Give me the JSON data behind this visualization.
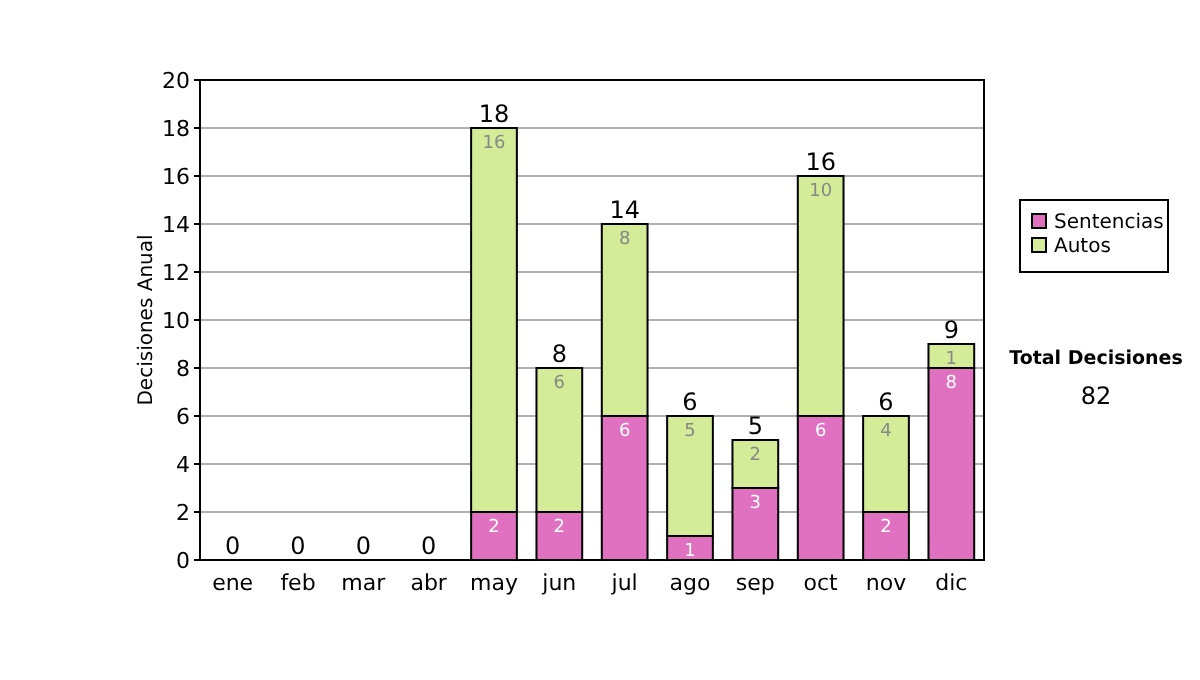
{
  "chart_data": {
    "type": "bar",
    "stacked": true,
    "ylabel": "Decisiones Anual",
    "categories": [
      "ene",
      "feb",
      "mar",
      "abr",
      "may",
      "jun",
      "jul",
      "ago",
      "sep",
      "oct",
      "nov",
      "dic"
    ],
    "series": [
      {
        "name": "Sentencias",
        "color": "#e070c0",
        "values": [
          0,
          0,
          0,
          0,
          2,
          2,
          6,
          1,
          3,
          6,
          2,
          8
        ],
        "value_labels": [
          null,
          null,
          null,
          null,
          "2",
          "2",
          "6",
          "1",
          "3",
          "6",
          "2",
          "8"
        ]
      },
      {
        "name": "Autos",
        "color": "#d4ec98",
        "values": [
          0,
          0,
          0,
          0,
          16,
          6,
          8,
          5,
          2,
          10,
          4,
          1
        ],
        "value_labels": [
          null,
          null,
          null,
          null,
          "16",
          "6",
          "8",
          "5",
          "2",
          "10",
          "4",
          "1"
        ]
      }
    ],
    "totals": [
      "0",
      "0",
      "0",
      "0",
      "18",
      "8",
      "14",
      "6",
      "5",
      "16",
      "6",
      "9"
    ],
    "ylim": [
      0,
      20
    ],
    "yticks": [
      0,
      2,
      4,
      6,
      8,
      10,
      12,
      14,
      16,
      18,
      20
    ],
    "grid": "y",
    "legend": "right",
    "annotations": [
      "Total Decisiones",
      "82"
    ]
  }
}
